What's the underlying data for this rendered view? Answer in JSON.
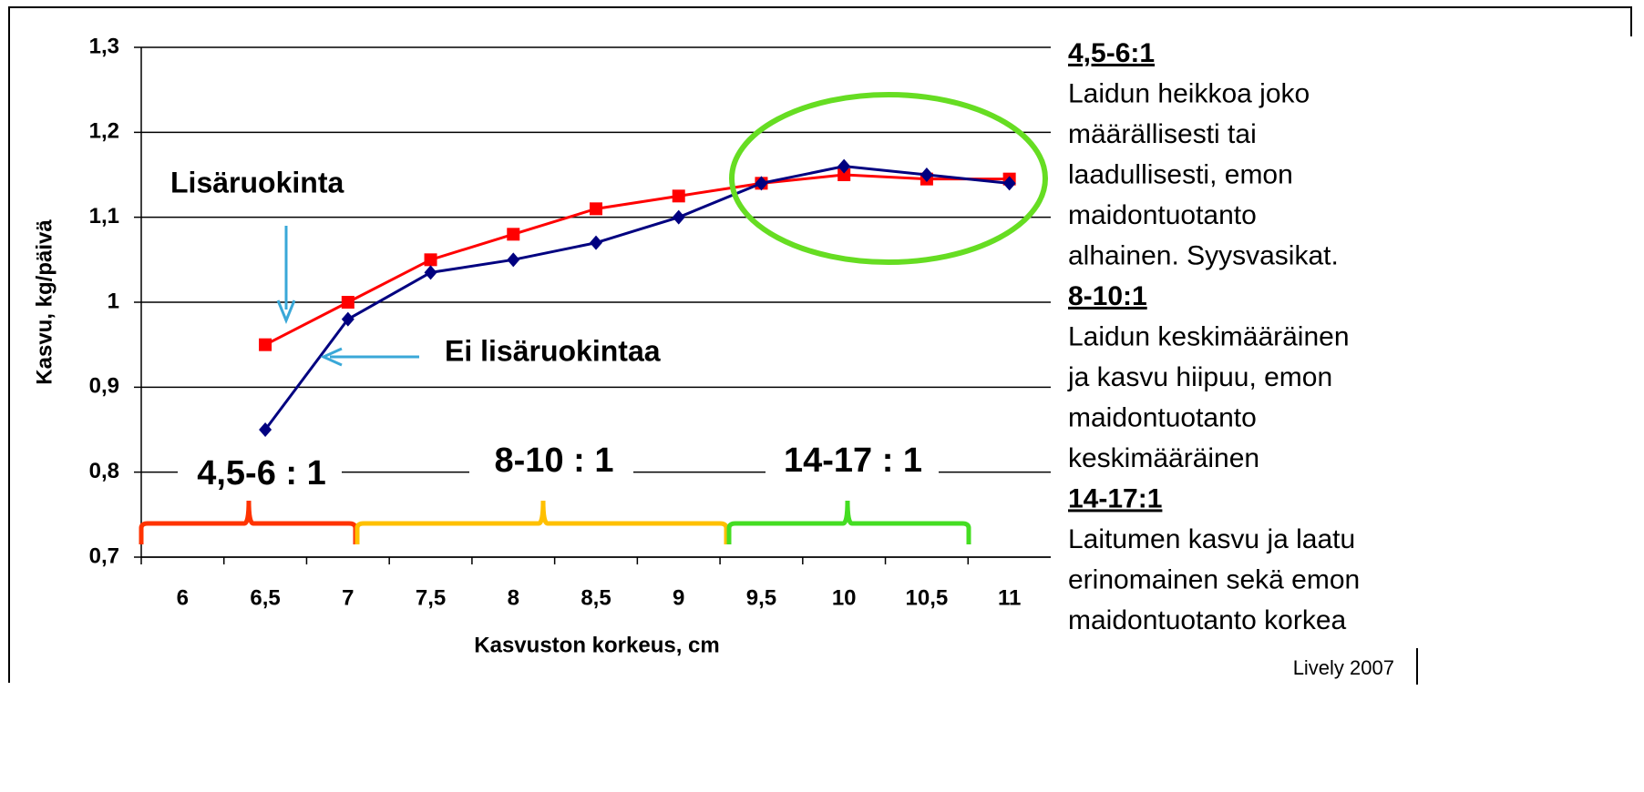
{
  "chart_data": {
    "type": "line",
    "ylabel": "Kasvu, kg/päivä",
    "xlabel": "Kasvuston korkeus, cm",
    "categories": [
      "6",
      "6,5",
      "7",
      "7,5",
      "8",
      "8,5",
      "9",
      "9,5",
      "10",
      "10,5",
      "11"
    ],
    "series": [
      {
        "name": "Lisäruokinta",
        "color": "#ff0000",
        "marker": "square",
        "values": [
          null,
          0.95,
          1.0,
          1.05,
          1.08,
          1.11,
          1.125,
          1.14,
          1.15,
          1.145,
          1.145
        ]
      },
      {
        "name": "Ei lisäruokintaa",
        "color": "#000080",
        "marker": "diamond",
        "values": [
          null,
          0.85,
          0.98,
          1.035,
          1.05,
          1.07,
          1.1,
          1.14,
          1.16,
          1.15,
          1.14
        ]
      }
    ],
    "ylim": [
      0.7,
      1.3
    ],
    "yticks": [
      {
        "value": 0.7,
        "label": "0,7"
      },
      {
        "value": 0.8,
        "label": "0,8"
      },
      {
        "value": 0.9,
        "label": "0,9"
      },
      1,
      {
        "value": 1.1,
        "label": "1,1"
      },
      {
        "value": 1.2,
        "label": "1,2"
      },
      {
        "value": 1.3,
        "label": "1,3"
      }
    ],
    "grid": true,
    "ranges": [
      "4,5-6 : 1",
      "8-10 : 1",
      "14-17 : 1"
    ]
  },
  "notes": [
    {
      "heading": "4,5-6:1",
      "lines": [
        "Laidun heikkoa joko",
        "määrällisesti tai",
        "laadullisesti, emon",
        "maidontuotanto",
        "alhainen. Syysvasikat."
      ]
    },
    {
      "heading": "8-10:1",
      "lines": [
        "Laidun keskimääräinen",
        "ja kasvu hiipuu, emon",
        "maidontuotanto",
        "keskimääräinen"
      ]
    },
    {
      "heading": "14-17:1",
      "lines": [
        "Laitumen kasvu ja laatu",
        "erinomainen sekä emon",
        "maidontuotanto korkea"
      ]
    }
  ],
  "source": "Lively 2007"
}
